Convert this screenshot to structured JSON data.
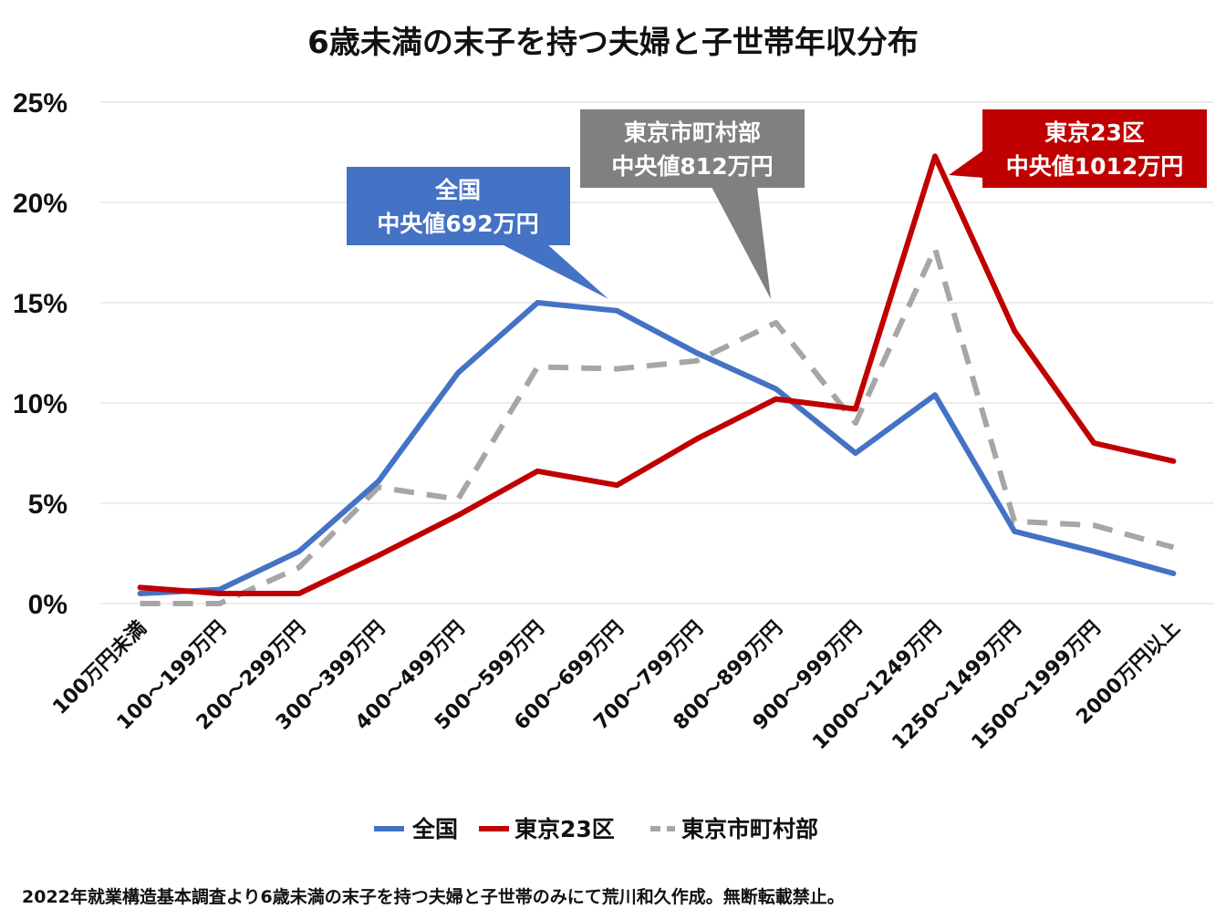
{
  "chart_data": {
    "type": "line",
    "title": "6歳未満の末子を持つ夫婦と子世帯年収分布",
    "categories": [
      "100万円未満",
      "100～199万円",
      "200～299万円",
      "300～399万円",
      "400～499万円",
      "500～599万円",
      "600～699万円",
      "700～799万円",
      "800～899万円",
      "900～999万円",
      "1000～1249万円",
      "1250～1499万円",
      "1500～1999万円",
      "2000万円以上"
    ],
    "series": [
      {
        "name": "全国",
        "color": "#4472C4",
        "dash": "solid",
        "values": [
          0.5,
          0.7,
          2.6,
          6.1,
          11.5,
          15.0,
          14.6,
          12.5,
          10.7,
          7.5,
          10.4,
          3.6,
          2.6,
          1.5
        ]
      },
      {
        "name": "東京23区",
        "color": "#C00000",
        "dash": "solid",
        "values": [
          0.8,
          0.5,
          0.5,
          2.4,
          4.4,
          6.6,
          5.9,
          8.2,
          10.2,
          9.7,
          22.3,
          13.6,
          8.0,
          7.1
        ]
      },
      {
        "name": "東京市町村部",
        "color": "#A6A6A6",
        "dash": "dashed",
        "values": [
          0.0,
          0.0,
          1.8,
          5.8,
          5.2,
          11.8,
          11.7,
          12.1,
          14.0,
          9.0,
          17.7,
          4.1,
          3.9,
          2.8
        ]
      }
    ],
    "ylim": [
      0,
      25
    ],
    "yticks": [
      "0%",
      "5%",
      "10%",
      "15%",
      "20%",
      "25%"
    ],
    "grid": true,
    "legend_position": "bottom",
    "annotations": [
      {
        "series": "全国",
        "line1": "全国",
        "line2": "中央値692万円",
        "color": "#4472C4"
      },
      {
        "series": "東京市町村部",
        "line1": "東京市町村部",
        "line2": "中央値812万円",
        "color": "#808080"
      },
      {
        "series": "東京23区",
        "line1": "東京23区",
        "line2": "中央値1012万円",
        "color": "#C00000"
      }
    ],
    "footnote": "2022年就業構造基本調査より6歳未満の末子を持つ夫婦と子世帯のみにて荒川和久作成。無断転載禁止。"
  }
}
